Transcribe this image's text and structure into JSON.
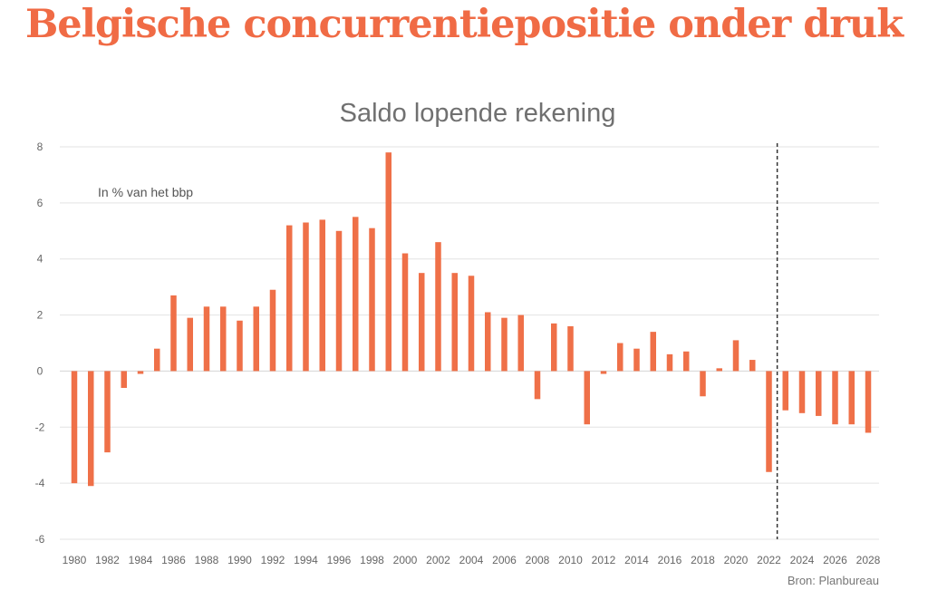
{
  "headline": "Belgische concurrentiepositie onder druk",
  "chart_data": {
    "type": "bar",
    "title": "Saldo lopende rekening",
    "unit_label": "In % van het bbp",
    "source": "Bron: Planbureau",
    "xlabel": "",
    "ylabel": "",
    "ylim": [
      -6,
      8
    ],
    "yticks": [
      -6,
      -4,
      -2,
      0,
      2,
      4,
      6,
      8
    ],
    "grid": true,
    "bar_color": "#ef7048",
    "categories": [
      1980,
      1981,
      1982,
      1983,
      1984,
      1985,
      1986,
      1987,
      1988,
      1989,
      1990,
      1991,
      1992,
      1993,
      1994,
      1995,
      1996,
      1997,
      1998,
      1999,
      2000,
      2001,
      2002,
      2003,
      2004,
      2005,
      2006,
      2007,
      2008,
      2009,
      2010,
      2011,
      2012,
      2013,
      2014,
      2015,
      2016,
      2017,
      2018,
      2019,
      2020,
      2021,
      2022,
      2023,
      2024,
      2025,
      2026,
      2027,
      2028
    ],
    "xtick_labels": [
      1980,
      1982,
      1984,
      1986,
      1988,
      1990,
      1992,
      1994,
      1996,
      1998,
      2000,
      2002,
      2004,
      2006,
      2008,
      2010,
      2012,
      2014,
      2016,
      2018,
      2020,
      2022,
      2024,
      2026,
      2028
    ],
    "values": [
      -4.0,
      -4.1,
      -2.9,
      -0.6,
      -0.1,
      0.8,
      2.7,
      1.9,
      2.3,
      2.3,
      1.8,
      2.3,
      2.9,
      5.2,
      5.3,
      5.4,
      5.0,
      5.5,
      5.1,
      7.8,
      4.2,
      3.5,
      4.6,
      3.5,
      3.4,
      2.1,
      1.9,
      2.0,
      -1.0,
      1.7,
      1.6,
      -1.9,
      -0.1,
      1.0,
      0.8,
      1.4,
      0.6,
      0.7,
      -0.9,
      0.1,
      1.1,
      0.4,
      -3.6,
      -1.4,
      -1.5,
      -1.6,
      -1.9,
      -1.9,
      -2.2
    ],
    "forecast_start": 2023
  }
}
